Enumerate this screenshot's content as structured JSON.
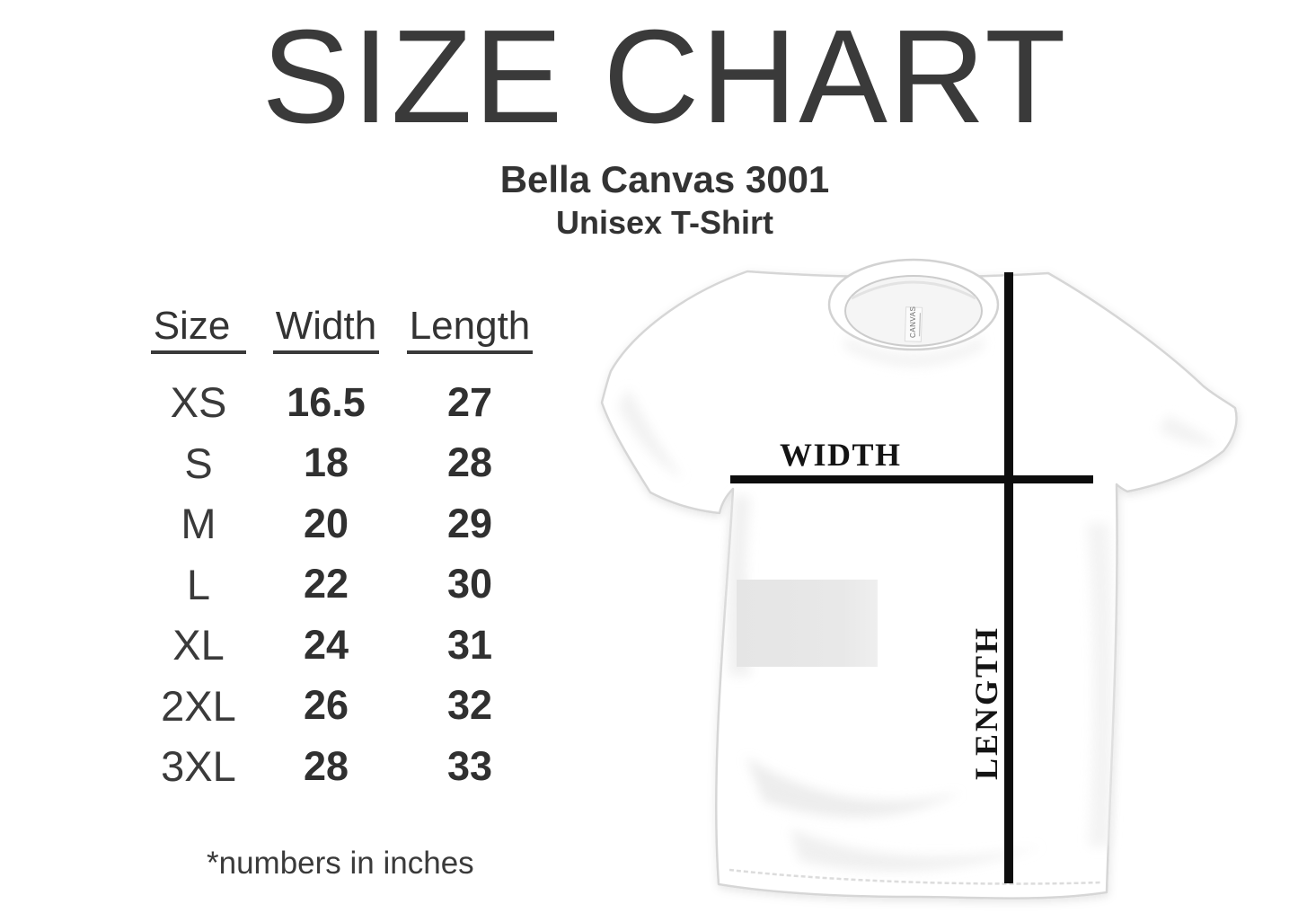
{
  "header": {
    "title": "SIZE CHART",
    "subtitle1": "Bella Canvas 3001",
    "subtitle2": "Unisex T-Shirt"
  },
  "chart_data": {
    "type": "table",
    "title": "SIZE CHART",
    "product": "Bella Canvas 3001 Unisex T-Shirt",
    "columns": [
      "Size",
      "Width",
      "Length"
    ],
    "rows": [
      [
        "XS",
        "16.5",
        "27"
      ],
      [
        "S",
        "18",
        "28"
      ],
      [
        "M",
        "20",
        "29"
      ],
      [
        "L",
        "22",
        "30"
      ],
      [
        "XL",
        "24",
        "31"
      ],
      [
        "2XL",
        "26",
        "32"
      ],
      [
        "3XL",
        "28",
        "33"
      ]
    ],
    "units": "inches",
    "footnote": "*numbers in inches"
  },
  "diagram": {
    "width_label": "WIDTH",
    "length_label": "LENGTH",
    "collar_tag": "CANVAS"
  },
  "colors": {
    "text": "#363636",
    "measure_line": "#0d0d0d",
    "shirt_outline": "#d6d6d6",
    "patch": "#e6e6e6"
  }
}
